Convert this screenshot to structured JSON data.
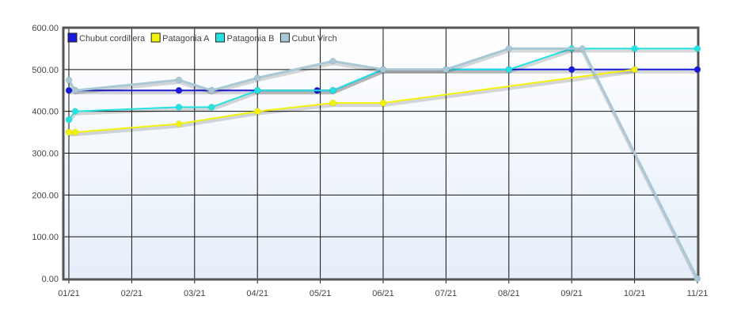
{
  "chart_data": {
    "type": "line",
    "x": [
      "01/21",
      "01/21",
      "02/21",
      "03/21",
      "03/21",
      "04/21",
      "05/21",
      "05/21",
      "06/21",
      "07/21",
      "08/21",
      "09/21",
      "09/21",
      "10/21",
      "11/21"
    ],
    "x_positions": [
      0.0,
      0.1,
      1.0,
      1.75,
      2.27,
      3.0,
      3.95,
      4.2,
      5.0,
      6.0,
      7.0,
      8.0,
      8.17,
      9.0,
      10.0
    ],
    "x_tick_labels": [
      "01/21",
      "02/21",
      "03/21",
      "04/21",
      "05/21",
      "06/21",
      "07/21",
      "08/21",
      "09/21",
      "10/21",
      "11/21"
    ],
    "y_tick_labels": [
      "0.00",
      "100.00",
      "200.00",
      "300.00",
      "400.00",
      "500.00",
      "600.00"
    ],
    "ylim": [
      0,
      600
    ],
    "grid": true,
    "legend_position": "top-left",
    "series": [
      {
        "name": "Chubut cordillera",
        "color": "#1a1adb",
        "points": [
          [
            0.0,
            450
          ],
          [
            0.1,
            450
          ],
          [
            1.75,
            450
          ],
          [
            2.27,
            450
          ],
          [
            3.0,
            450
          ],
          [
            3.95,
            450
          ],
          [
            4.2,
            450
          ],
          [
            5.0,
            500
          ],
          [
            6.0,
            500
          ],
          [
            7.0,
            500
          ],
          [
            8.0,
            500
          ],
          [
            9.0,
            500
          ],
          [
            10.0,
            500
          ]
        ]
      },
      {
        "name": "Patagonia A",
        "color": "#f2f20a",
        "points": [
          [
            0.0,
            350
          ],
          [
            0.1,
            350
          ],
          [
            1.75,
            370
          ],
          [
            3.0,
            400
          ],
          [
            4.2,
            420
          ],
          [
            5.0,
            420
          ],
          [
            9.0,
            500
          ]
        ]
      },
      {
        "name": "Patagonia B",
        "color": "#22e2e2",
        "points": [
          [
            0.0,
            380
          ],
          [
            0.1,
            400
          ],
          [
            1.75,
            410
          ],
          [
            2.27,
            410
          ],
          [
            3.0,
            450
          ],
          [
            4.2,
            450
          ],
          [
            5.0,
            500
          ],
          [
            6.0,
            500
          ],
          [
            7.0,
            500
          ],
          [
            8.0,
            550
          ],
          [
            9.0,
            550
          ],
          [
            10.0,
            550
          ]
        ]
      },
      {
        "name": "Cubut Virch",
        "color": "#a9c8d6",
        "points": [
          [
            0.0,
            475
          ],
          [
            0.1,
            450
          ],
          [
            1.75,
            475
          ],
          [
            2.27,
            450
          ],
          [
            3.0,
            480
          ],
          [
            4.2,
            520
          ],
          [
            5.0,
            500
          ],
          [
            6.0,
            500
          ],
          [
            7.0,
            550
          ],
          [
            8.17,
            550
          ],
          [
            10.0,
            0
          ]
        ]
      }
    ]
  }
}
